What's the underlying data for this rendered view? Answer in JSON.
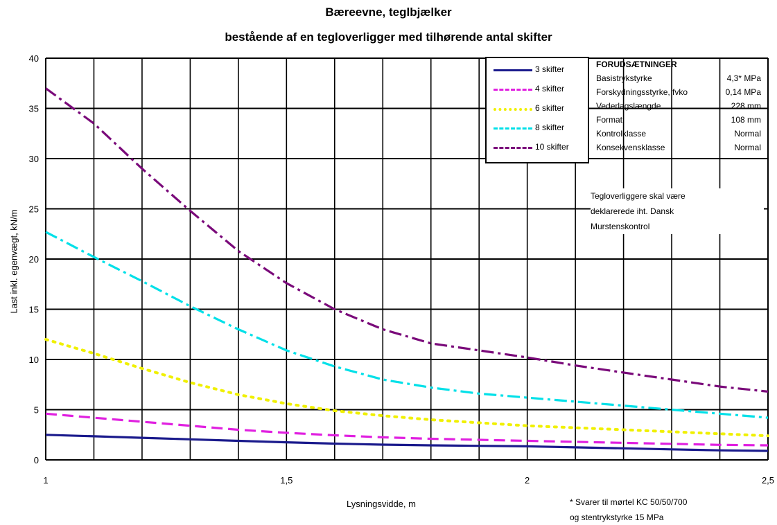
{
  "chart_data": {
    "type": "line",
    "title": "Bæreevne, teglbjælker",
    "subtitle": "bestående af en tegloverligger med tilhørende antal skifter",
    "xlabel": "Lysningsvidde, m",
    "ylabel": "Last inkl. egenvægt, kN/m",
    "xlim": [
      1,
      2.5
    ],
    "ylim": [
      0,
      40
    ],
    "x_ticks": [
      1,
      1.5,
      2,
      2.5
    ],
    "x_tick_labels": [
      "1",
      "1,5",
      "2",
      "2,5"
    ],
    "y_ticks": [
      0,
      5,
      10,
      15,
      20,
      25,
      30,
      35,
      40
    ],
    "y_tick_labels": [
      "0",
      "5",
      "10",
      "15",
      "20",
      "25",
      "30",
      "35",
      "40"
    ],
    "grid": true,
    "legend_position": "top-right",
    "x": [
      1.0,
      1.1,
      1.2,
      1.3,
      1.4,
      1.5,
      1.6,
      1.7,
      1.8,
      1.9,
      2.0,
      2.1,
      2.2,
      2.3,
      2.4,
      2.5
    ],
    "series": [
      {
        "name": "3 skifter",
        "color": "#1a1a8c",
        "dash": "solid",
        "values": [
          2.5,
          2.35,
          2.2,
          2.05,
          1.9,
          1.75,
          1.62,
          1.52,
          1.45,
          1.4,
          1.35,
          1.25,
          1.15,
          1.05,
          0.95,
          0.9
        ]
      },
      {
        "name": "4 skifter",
        "color": "#e020e0",
        "dash": "dash",
        "values": [
          4.6,
          4.2,
          3.8,
          3.4,
          3.0,
          2.7,
          2.45,
          2.25,
          2.1,
          2.0,
          1.9,
          1.8,
          1.7,
          1.6,
          1.5,
          1.45
        ]
      },
      {
        "name": "6 skifter",
        "color": "#f0f000",
        "dash": "dot",
        "values": [
          12.0,
          10.6,
          9.1,
          7.7,
          6.5,
          5.6,
          4.9,
          4.4,
          4.0,
          3.7,
          3.4,
          3.2,
          3.0,
          2.8,
          2.6,
          2.4
        ]
      },
      {
        "name": "8 skifter",
        "color": "#00e0e8",
        "dash": "dashdot",
        "values": [
          22.7,
          20.2,
          17.8,
          15.3,
          13.0,
          10.9,
          9.3,
          8.0,
          7.2,
          6.6,
          6.2,
          5.8,
          5.4,
          5.0,
          4.6,
          4.2
        ]
      },
      {
        "name": "10 skifter",
        "color": "#7a0a7a",
        "dash": "dashdot",
        "values": [
          37.0,
          33.5,
          29.0,
          24.8,
          20.8,
          17.6,
          15.0,
          13.0,
          11.6,
          10.9,
          10.2,
          9.4,
          8.7,
          8.0,
          7.3,
          6.8
        ]
      }
    ]
  },
  "assumptions": {
    "heading": "FORUDSÆTNINGER",
    "rows": [
      {
        "key": "Basistrykstyrke",
        "value": "4,3* MPa"
      },
      {
        "key": "Forskydningsstyrke, fvko",
        "value": "0,14 MPa"
      },
      {
        "key": "Vederlagslængde",
        "value": "228 mm"
      },
      {
        "key": "Format",
        "value": "108 mm"
      },
      {
        "key": "Kontrolklasse",
        "value": "Normal"
      },
      {
        "key": "Konsekvensklasse",
        "value": "Normal"
      }
    ]
  },
  "note": {
    "line1": "Tegloverliggere skal være",
    "line2": "deklarerede iht. Dansk",
    "line3": "Murstenskontrol"
  },
  "footnote": {
    "line1": "* Svarer til mørtel KC 50/50/700",
    "line2": "og stentrykstyrke 15 MPa"
  }
}
